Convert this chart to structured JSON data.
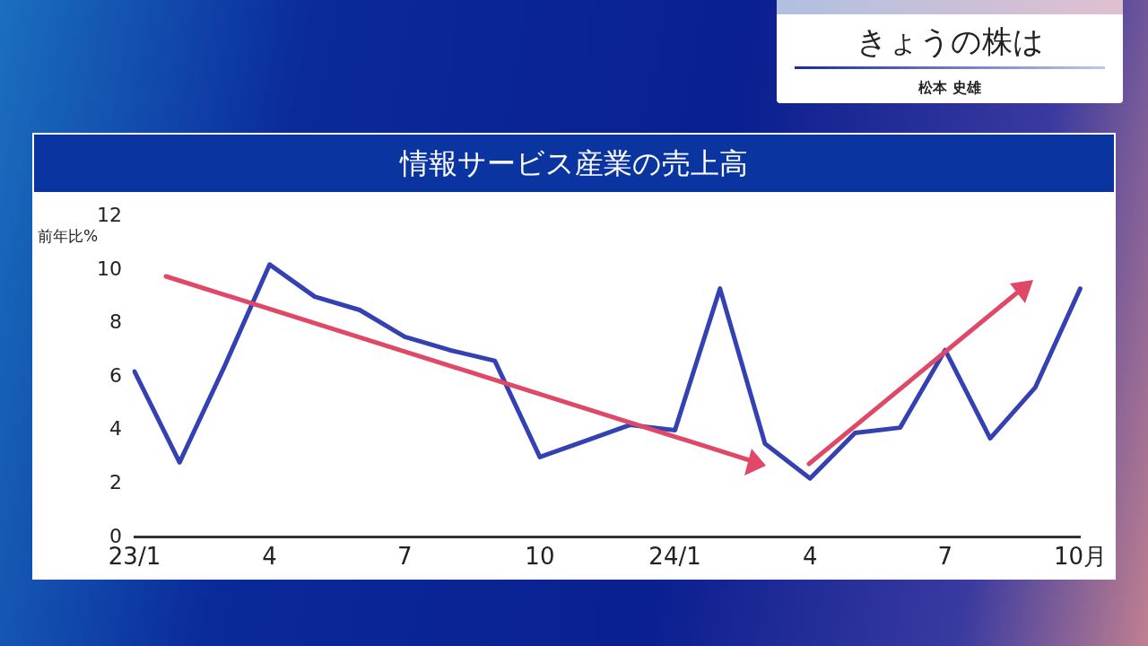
{
  "chart_data": {
    "type": "line",
    "title": "情報サービス産業の売上高",
    "subtitle": "きょうの株は",
    "ylabel": "前年比%",
    "annotations": [
      "松本 史雄"
    ],
    "categories": [
      "23/1",
      null,
      null,
      "4",
      null,
      null,
      "7",
      null,
      null,
      "10",
      null,
      null,
      "24/1",
      null,
      null,
      "4",
      null,
      null,
      "7",
      null,
      null,
      "10月"
    ],
    "series": [
      {
        "color": "#3341b3",
        "values": [
          6.2,
          2.8,
          6.4,
          10.2,
          9.0,
          8.5,
          7.5,
          7.0,
          6.6,
          3.0,
          3.6,
          4.2,
          4.0,
          9.3,
          3.5,
          2.2,
          3.9,
          4.1,
          7.0,
          3.7,
          5.6,
          9.3
        ]
      }
    ],
    "ylim": [
      0,
      12
    ],
    "yticks": [
      0,
      2,
      4,
      6,
      8,
      10,
      12
    ],
    "grid": false,
    "legend": false,
    "marker": "none",
    "line_style": "solid"
  }
}
